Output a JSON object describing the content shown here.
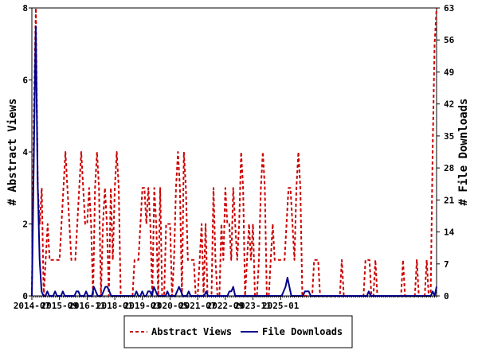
{
  "chart_data": {
    "type": "line",
    "x_labels": [
      "2014-07",
      "2015-09",
      "2016-11",
      "2018-01",
      "2019-03",
      "2020-05",
      "2021-07",
      "2022-09",
      "2023-11",
      "2025-01"
    ],
    "y_left": {
      "label": "# Abstract Views",
      "range": [
        0,
        8
      ],
      "ticks": [
        "0",
        "2",
        "4",
        "6",
        "8"
      ]
    },
    "y_right": {
      "label": "# File Downloads",
      "range": [
        0,
        63
      ],
      "ticks": [
        "0",
        "7",
        "14",
        "21",
        "28",
        "35",
        "42",
        "49",
        "56",
        "63"
      ]
    },
    "grid": false,
    "legend_position": "bottom",
    "series": [
      {
        "name": "Abstract Views",
        "axis": "left",
        "style": "dashed",
        "color": "#cc0000",
        "values": [
          0,
          5,
          8,
          3,
          2,
          3,
          0,
          1,
          2,
          1,
          1,
          1,
          1,
          1,
          1,
          2,
          3,
          4,
          3,
          2,
          1,
          1,
          1,
          2,
          3,
          4,
          3,
          2,
          2,
          3,
          2,
          0,
          3,
          4,
          3,
          0,
          2,
          3,
          2,
          0,
          3,
          1,
          3,
          4,
          3,
          0,
          0,
          0,
          0,
          0,
          0,
          0,
          1,
          1,
          1,
          2,
          3,
          3,
          2,
          3,
          2,
          0,
          3,
          2,
          0,
          3,
          0,
          0,
          2,
          2,
          2,
          0,
          1,
          3,
          4,
          3,
          0,
          4,
          3,
          1,
          1,
          1,
          1,
          0,
          0,
          1,
          2,
          0,
          2,
          0,
          0,
          0,
          3,
          1,
          0,
          0,
          2,
          1,
          3,
          2,
          2,
          1,
          3,
          2,
          1,
          2,
          4,
          3,
          0,
          1,
          2,
          1,
          2,
          0,
          0,
          1,
          3,
          4,
          3,
          0,
          0,
          1,
          2,
          1,
          1,
          1,
          1,
          1,
          1,
          2,
          3,
          3,
          2,
          1,
          3,
          4,
          3,
          0,
          0,
          0,
          0,
          0,
          0,
          1,
          1,
          1,
          0,
          0,
          0,
          0,
          0,
          0,
          0,
          0,
          0,
          0,
          0,
          1,
          0,
          0,
          0,
          0,
          0,
          0,
          0,
          0,
          0,
          0,
          0,
          1,
          1,
          1,
          0,
          0,
          1,
          0,
          0,
          0,
          0,
          0,
          0,
          0,
          0,
          0,
          0,
          0,
          0,
          0,
          1,
          0,
          0,
          0,
          0,
          0,
          0,
          1,
          0,
          0,
          0,
          0,
          1,
          0,
          0,
          4,
          7,
          8
        ]
      },
      {
        "name": "File Downloads",
        "axis": "right",
        "style": "solid",
        "color": "#00008b",
        "values": [
          0,
          30,
          59,
          25,
          8,
          1,
          0,
          0,
          1,
          0,
          0,
          0,
          1,
          0,
          0,
          0,
          1,
          0,
          0,
          0,
          0,
          0,
          0,
          1,
          1,
          0,
          0,
          0,
          1,
          0,
          0,
          0,
          2,
          1,
          0,
          0,
          0,
          1,
          2,
          2,
          1,
          0,
          0,
          0,
          0,
          0,
          0,
          0,
          0,
          0,
          0,
          0,
          0,
          0,
          1,
          0,
          0,
          1,
          0,
          0,
          1,
          1,
          0,
          2,
          1,
          0,
          0,
          0,
          0,
          0,
          1,
          0,
          0,
          0,
          0,
          1,
          2,
          1,
          0,
          0,
          0,
          1,
          0,
          0,
          0,
          0,
          0,
          0,
          0,
          0,
          1,
          0,
          0,
          0,
          0,
          0,
          0,
          0,
          0,
          0,
          0,
          0,
          1,
          1,
          2,
          0,
          0,
          0,
          0,
          0,
          0,
          0,
          0,
          0,
          0,
          0,
          0,
          0,
          0,
          0,
          0,
          0,
          0,
          0,
          0,
          0,
          0,
          0,
          0,
          0,
          1,
          2,
          4,
          2,
          0,
          0,
          0,
          0,
          0,
          0,
          0,
          1,
          1,
          1,
          0,
          0,
          0,
          0,
          0,
          0,
          0,
          0,
          0,
          0,
          0,
          0,
          0,
          0,
          0,
          0,
          0,
          0,
          0,
          0,
          0,
          0,
          0,
          0,
          0,
          0,
          0,
          0,
          0,
          0,
          1,
          0,
          0,
          0,
          0,
          0,
          0,
          0,
          0,
          0,
          0,
          0,
          0,
          0,
          0,
          0,
          0,
          0,
          0,
          0,
          0,
          0,
          0,
          0,
          0,
          0,
          0,
          0,
          0,
          0,
          0,
          0,
          0,
          1,
          0,
          2
        ]
      }
    ]
  }
}
